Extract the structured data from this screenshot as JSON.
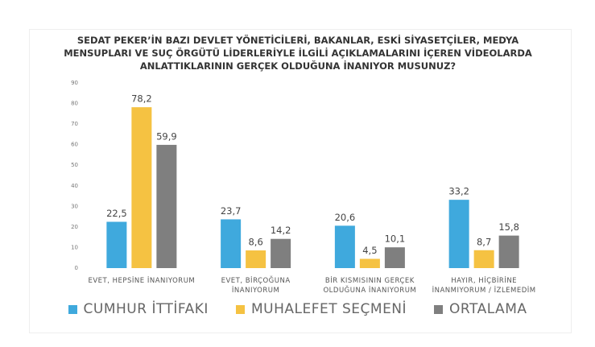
{
  "chart_data": {
    "type": "bar",
    "title": "SEDAT PEKER’İN BAZI DEVLET YÖNETİCİLERİ, BAKANLAR, ESKİ SİYASETÇİLER, MEDYA\nMENSUPLARI VE SUÇ ÖRGÜTÜ LİDERLERİYLE İLGİLİ AÇIKLAMALARINI İÇEREN VİDEOLARDA\nANLATTIKLARININ GERÇEK OLDUĞUNA İNANIYOR MUSUNUZ?",
    "categories": [
      "EVET, HEPSİNE İNANIYORUM",
      "EVET, BİRÇOĞUNA\nİNANIYORUM",
      "BİR KISMISININ GERÇEK\nOLDUĞUNA İNANIYORUM",
      "HAYIR, HİÇBİRİNE\nİNANMIYORUM / İZLEMEDİM"
    ],
    "series": [
      {
        "name": "CUMHUR İTTİFAKI",
        "color": "#3fa9dd",
        "values": [
          22.5,
          23.7,
          20.6,
          33.2
        ],
        "value_labels": [
          "22,5",
          "23,7",
          "20,6",
          "33,2"
        ]
      },
      {
        "name": "MUHALEFET SEÇMENİ",
        "color": "#f5c242",
        "values": [
          78.2,
          8.6,
          4.5,
          8.7
        ],
        "value_labels": [
          "78,2",
          "8,6",
          "4,5",
          "8,7"
        ]
      },
      {
        "name": "ORTALAMA",
        "color": "#7f7f7f",
        "values": [
          59.9,
          14.2,
          10.1,
          15.8
        ],
        "value_labels": [
          "59,9",
          "14,2",
          "10,1",
          "15,8"
        ]
      }
    ],
    "ylim": [
      0,
      90
    ],
    "yticks": [
      0,
      10,
      20,
      30,
      40,
      50,
      60,
      70,
      80,
      90
    ],
    "grid": false,
    "legend": "bottom"
  }
}
